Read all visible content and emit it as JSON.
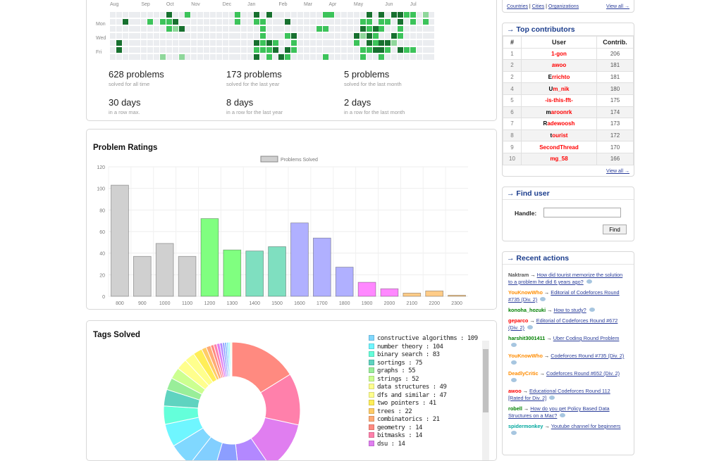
{
  "activity": {
    "months": [
      "Aug",
      "Sep",
      "Oct",
      "Nov",
      "Dec",
      "Jan",
      "Feb",
      "Mar",
      "Apr",
      "May",
      "Jun",
      "Jul"
    ],
    "days": [
      "Mon",
      "Wed",
      "Fri"
    ],
    "level_colors": [
      "#ebedf0",
      "#8fd79b",
      "#3cc35a",
      "#17702f"
    ],
    "cells": [
      [
        0,
        9,
        3
      ],
      [
        0,
        12,
        2
      ],
      [
        0,
        20,
        2
      ],
      [
        0,
        23,
        3
      ],
      [
        0,
        25,
        3
      ],
      [
        0,
        34,
        2
      ],
      [
        0,
        35,
        2
      ],
      [
        0,
        41,
        3
      ],
      [
        0,
        43,
        3
      ],
      [
        0,
        45,
        3
      ],
      [
        0,
        46,
        3
      ],
      [
        0,
        47,
        2
      ],
      [
        0,
        48,
        2
      ],
      [
        0,
        50,
        1
      ],
      [
        1,
        2,
        3
      ],
      [
        1,
        6,
        2
      ],
      [
        1,
        8,
        2
      ],
      [
        1,
        9,
        2
      ],
      [
        1,
        10,
        3
      ],
      [
        1,
        20,
        2
      ],
      [
        1,
        23,
        2
      ],
      [
        1,
        24,
        2
      ],
      [
        1,
        28,
        3
      ],
      [
        1,
        40,
        2
      ],
      [
        1,
        41,
        2
      ],
      [
        1,
        43,
        2
      ],
      [
        1,
        44,
        2
      ],
      [
        1,
        46,
        3
      ],
      [
        1,
        48,
        2
      ],
      [
        1,
        50,
        2
      ],
      [
        2,
        9,
        2
      ],
      [
        2,
        10,
        1
      ],
      [
        2,
        11,
        3
      ],
      [
        2,
        24,
        2
      ],
      [
        2,
        33,
        2
      ],
      [
        2,
        34,
        2
      ],
      [
        2,
        40,
        3
      ],
      [
        2,
        41,
        2
      ],
      [
        2,
        42,
        3
      ],
      [
        2,
        43,
        2
      ],
      [
        2,
        46,
        2
      ],
      [
        3,
        24,
        2
      ],
      [
        3,
        28,
        2
      ],
      [
        3,
        29,
        3
      ],
      [
        3,
        39,
        3
      ],
      [
        3,
        40,
        1
      ],
      [
        3,
        41,
        3
      ],
      [
        3,
        42,
        2
      ],
      [
        3,
        45,
        3
      ],
      [
        3,
        46,
        2
      ],
      [
        4,
        1,
        3
      ],
      [
        4,
        23,
        3
      ],
      [
        4,
        24,
        2
      ],
      [
        4,
        25,
        3
      ],
      [
        4,
        26,
        2
      ],
      [
        4,
        29,
        2
      ],
      [
        4,
        39,
        2
      ],
      [
        4,
        41,
        3
      ],
      [
        4,
        42,
        2
      ],
      [
        4,
        43,
        3
      ],
      [
        4,
        44,
        3
      ],
      [
        4,
        45,
        1
      ],
      [
        5,
        1,
        3
      ],
      [
        5,
        23,
        2
      ],
      [
        5,
        24,
        2
      ],
      [
        5,
        25,
        2
      ],
      [
        5,
        26,
        3
      ],
      [
        5,
        28,
        3
      ],
      [
        5,
        29,
        2
      ],
      [
        5,
        40,
        2
      ],
      [
        5,
        41,
        2
      ],
      [
        5,
        42,
        3
      ],
      [
        5,
        43,
        3
      ],
      [
        5,
        44,
        2
      ],
      [
        5,
        46,
        3
      ],
      [
        5,
        47,
        2
      ],
      [
        5,
        48,
        2
      ],
      [
        6,
        8,
        1
      ],
      [
        6,
        11,
        1
      ],
      [
        6,
        23,
        3
      ],
      [
        6,
        25,
        2
      ],
      [
        6,
        27,
        3
      ],
      [
        6,
        28,
        2
      ],
      [
        6,
        34,
        2
      ],
      [
        6,
        40,
        2
      ],
      [
        6,
        43,
        2
      ]
    ],
    "stats": [
      {
        "value": "628 problems",
        "label": "solved for all time"
      },
      {
        "value": "173 problems",
        "label": "solved for the last year"
      },
      {
        "value": "5 problems",
        "label": "solved for the last month"
      },
      {
        "value": "30 days",
        "label": "in a row max."
      },
      {
        "value": "8 days",
        "label": "in a row for the last year"
      },
      {
        "value": "2 days",
        "label": "in a row for the last month"
      }
    ]
  },
  "chart_data": [
    {
      "type": "bar",
      "title": "Problem Ratings",
      "legend": "Problems Solved",
      "legend_placement": "top",
      "grid": true,
      "categories": [
        "800",
        "900",
        "1000",
        "1100",
        "1200",
        "1300",
        "1400",
        "1500",
        "1600",
        "1700",
        "1800",
        "1900",
        "2000",
        "2100",
        "2200",
        "2300"
      ],
      "values": [
        103,
        37,
        49,
        37,
        72,
        43,
        42,
        46,
        68,
        54,
        27,
        13,
        7,
        3,
        5,
        1
      ],
      "colors": [
        "#d0d0d0",
        "#d0d0d0",
        "#d0d0d0",
        "#d0d0d0",
        "#80ff80",
        "#80ff80",
        "#7fdfc0",
        "#7fdfc0",
        "#b0b0ff",
        "#b0b0ff",
        "#b0b0ff",
        "#ff88ff",
        "#ff88ff",
        "#ffcc88",
        "#ffcc88",
        "#ffcc88"
      ],
      "ylim": [
        0,
        120
      ],
      "yticks": [
        0,
        20,
        40,
        60,
        80,
        100,
        120
      ]
    },
    {
      "type": "pie",
      "title": "Tags Solved",
      "donut": true,
      "slices": [
        {
          "name": "",
          "value": 310,
          "color": "#ff8a80"
        },
        {
          "name": "",
          "value": 235,
          "color": "#ff80ab"
        },
        {
          "name": "",
          "value": 230,
          "color": "#e07ef0"
        },
        {
          "name": "",
          "value": 150,
          "color": "#b388ff"
        },
        {
          "name": "",
          "value": 120,
          "color": "#8c9eff"
        },
        {
          "name": "",
          "value": 115,
          "color": "#82cfff"
        },
        {
          "name": "constructive algorithms",
          "value": 109,
          "color": "#80d8ff"
        },
        {
          "name": "number theory",
          "value": 104,
          "color": "#6ff6ff"
        },
        {
          "name": "binary search",
          "value": 83,
          "color": "#64ffda"
        },
        {
          "name": "sortings",
          "value": 75,
          "color": "#5fd3c0"
        },
        {
          "name": "graphs",
          "value": 55,
          "color": "#99ee99"
        },
        {
          "name": "strings",
          "value": 52,
          "color": "#ccff90"
        },
        {
          "name": "data structures",
          "value": 49,
          "color": "#ffff8d"
        },
        {
          "name": "dfs and similar",
          "value": 47,
          "color": "#ffff8d"
        },
        {
          "name": "two pointers",
          "value": 41,
          "color": "#ffee58"
        },
        {
          "name": "trees",
          "value": 22,
          "color": "#ffcc66"
        },
        {
          "name": "combinatorics",
          "value": 21,
          "color": "#ffab76"
        },
        {
          "name": "geometry",
          "value": 14,
          "color": "#ff8a80"
        },
        {
          "name": "bitmasks",
          "value": 14,
          "color": "#ff80ab"
        },
        {
          "name": "dsu",
          "value": 14,
          "color": "#e07ef0"
        },
        {
          "name": "",
          "value": 12,
          "color": "#b388ff"
        },
        {
          "name": "",
          "value": 10,
          "color": "#8c9eff"
        },
        {
          "name": "",
          "value": 9,
          "color": "#82b1ff"
        },
        {
          "name": "",
          "value": 8,
          "color": "#80d8ff"
        },
        {
          "name": "",
          "value": 7,
          "color": "#84ffff"
        },
        {
          "name": "",
          "value": 5,
          "color": "#b9f6ca"
        },
        {
          "name": "",
          "value": 4,
          "color": "#ffff8d"
        }
      ]
    }
  ],
  "sidebar": {
    "links": [
      "Countries",
      "Cities",
      "Organizations"
    ],
    "view_all": "View all →",
    "contributors": {
      "title": "→ Top contributors",
      "headers": [
        "#",
        "User",
        "Contrib."
      ],
      "rows": [
        {
          "rank": "1",
          "first": "",
          "rest": "1-gon",
          "value": "206"
        },
        {
          "rank": "2",
          "first": "",
          "rest": "awoo",
          "value": "181"
        },
        {
          "rank": "2",
          "first": "E",
          "rest": "rrichto",
          "value": "181"
        },
        {
          "rank": "4",
          "first": "U",
          "rest": "m_nik",
          "value": "180"
        },
        {
          "rank": "5",
          "first": "",
          "rest": "-is-this-fft-",
          "value": "175"
        },
        {
          "rank": "6",
          "first": "m",
          "rest": "aroonrk",
          "value": "174"
        },
        {
          "rank": "7",
          "first": "R",
          "rest": "adewoosh",
          "value": "173"
        },
        {
          "rank": "8",
          "first": "t",
          "rest": "ourist",
          "value": "172"
        },
        {
          "rank": "9",
          "first": "",
          "rest": "SecondThread",
          "value": "170"
        },
        {
          "rank": "10",
          "first": "",
          "rest": "mg_58",
          "value": "166"
        }
      ]
    },
    "find": {
      "title": "→ Find user",
      "label": "Handle:",
      "button": "Find",
      "value": ""
    },
    "recent": {
      "title": "→ Recent actions",
      "items": [
        {
          "user": "Naktram",
          "color": "#555555",
          "text": "How did tourist memorize the solution to a problem he did 6 years ago?"
        },
        {
          "user": "YouKnowWho",
          "color": "#ff8c00",
          "text": "Editorial of Codeforces Round #735 (Div. 2)"
        },
        {
          "user": "konoha_hozuki",
          "color": "#008000",
          "text": "How to study?"
        },
        {
          "user": "geparco",
          "color": "#ff0000",
          "text": "Editorial of Codeforces Round #672 (Div. 2)"
        },
        {
          "user": "harshit3001411",
          "color": "#008000",
          "text": "Uber Coding Round Problem"
        },
        {
          "user": "YouKnowWho",
          "color": "#ff8c00",
          "text": "Codeforces Round #735 (Div. 2)"
        },
        {
          "user": "DeadlyCritic",
          "color": "#ff8c00",
          "text": "Codeforces Round #652 (Div. 2)"
        },
        {
          "user": "awoo",
          "color": "#ff0000",
          "text": "Educational Codeforces Round 112 [Rated for Div. 2]"
        },
        {
          "user": "robell",
          "color": "#008000",
          "text": "How do you get Policy Based Data Structures on a Mac?"
        },
        {
          "user": "spidermonkey",
          "color": "#03a89e",
          "text": "Youtube channel for beginners"
        }
      ]
    }
  }
}
